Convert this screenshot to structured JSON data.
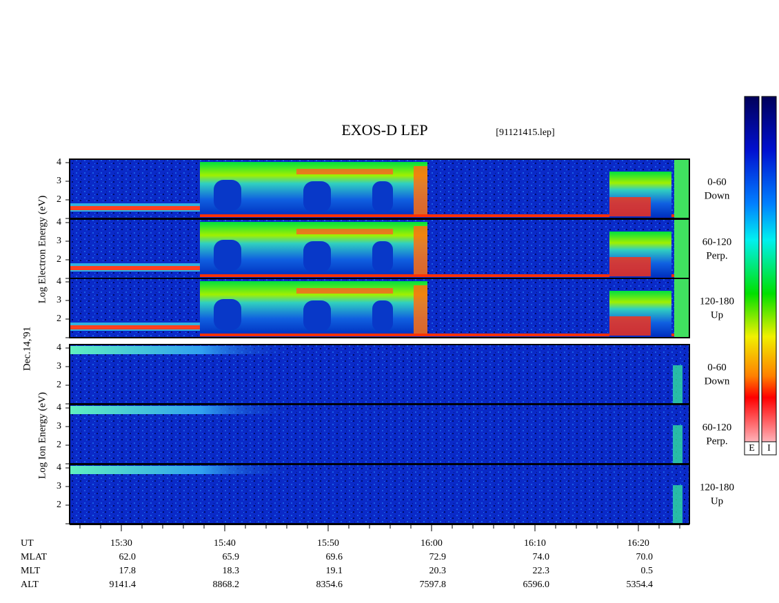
{
  "title": "EXOS-D LEP",
  "file": "[91121415.lep]",
  "date": "Dec.14,'91",
  "electron_axis_label": "Log   Electron   Energy (eV)",
  "ion_axis_label": "Log   Ion   Energy (eV)",
  "yticks": [
    "4",
    "3",
    "2"
  ],
  "panels": [
    {
      "angle": "0-60",
      "direction": "Down"
    },
    {
      "angle": "60-120",
      "direction": "Perp."
    },
    {
      "angle": "120-180",
      "direction": "Up"
    },
    {
      "angle": "0-60",
      "direction": "Down"
    },
    {
      "angle": "60-120",
      "direction": "Perp."
    },
    {
      "angle": "120-180",
      "direction": "Up"
    }
  ],
  "ephemeris": {
    "labels": [
      "UT",
      "MLAT",
      "MLT",
      "ALT"
    ],
    "rows": [
      [
        "15:30",
        "15:40",
        "15:50",
        "16:00",
        "16:10",
        "16:20"
      ],
      [
        "62.0",
        "65.9",
        "69.6",
        "72.9",
        "74.0",
        "70.0"
      ],
      [
        "17.8",
        "18.3",
        "19.1",
        "20.3",
        "22.3",
        "0.5"
      ],
      [
        "9141.4",
        "8868.2",
        "8354.6",
        "7597.8",
        "6596.0",
        "5354.4"
      ]
    ]
  },
  "colorbars": [
    "E",
    "I"
  ]
}
